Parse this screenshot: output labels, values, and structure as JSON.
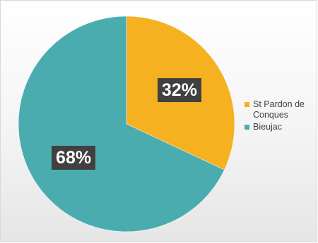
{
  "chart_data": {
    "type": "pie",
    "title": "",
    "slices": [
      {
        "name": "St Pardon de Conques",
        "value": 32,
        "label": "32%",
        "color": "#f5b120"
      },
      {
        "name": "Bieujac",
        "value": 68,
        "label": "68%",
        "color": "#4bacb0"
      }
    ],
    "start_angle_deg": 0,
    "direction": "clockwise",
    "legend_position": "right"
  }
}
